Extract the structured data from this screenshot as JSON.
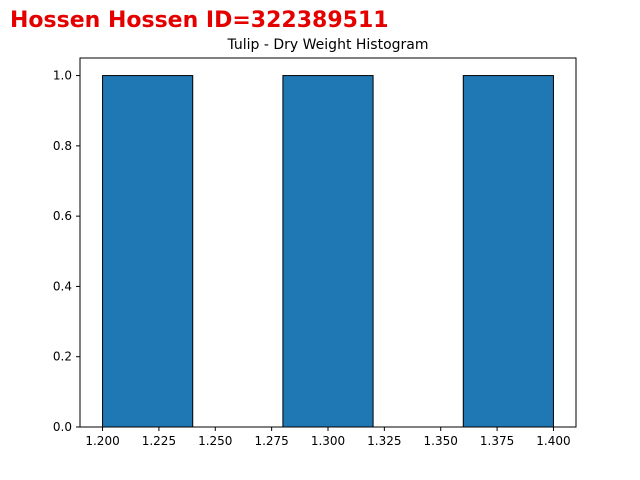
{
  "header": {
    "text": "Hossen Hossen ID=322389511",
    "color": "#e50000"
  },
  "chart_data": {
    "type": "bar",
    "title": "Tulip - Dry Weight Histogram",
    "xlabel": "",
    "ylabel": "",
    "bins": [
      {
        "start": 1.2,
        "end": 1.24,
        "count": 1.0
      },
      {
        "start": 1.24,
        "end": 1.28,
        "count": 0.0
      },
      {
        "start": 1.28,
        "end": 1.32,
        "count": 1.0
      },
      {
        "start": 1.32,
        "end": 1.36,
        "count": 0.0
      },
      {
        "start": 1.36,
        "end": 1.4,
        "count": 1.0
      }
    ],
    "xlim": [
      1.19,
      1.41
    ],
    "ylim": [
      0,
      1.05
    ],
    "x_ticks": [
      "1.200",
      "1.225",
      "1.250",
      "1.275",
      "1.300",
      "1.325",
      "1.350",
      "1.375",
      "1.400"
    ],
    "x_tick_values": [
      1.2,
      1.225,
      1.25,
      1.275,
      1.3,
      1.325,
      1.35,
      1.375,
      1.4
    ],
    "y_ticks": [
      "0.0",
      "0.2",
      "0.4",
      "0.6",
      "0.8",
      "1.0"
    ],
    "y_tick_values": [
      0.0,
      0.2,
      0.4,
      0.6,
      0.8,
      1.0
    ],
    "bar_color": "#1f77b4",
    "edge_color": "#000000",
    "grid": false,
    "legend": "none"
  }
}
